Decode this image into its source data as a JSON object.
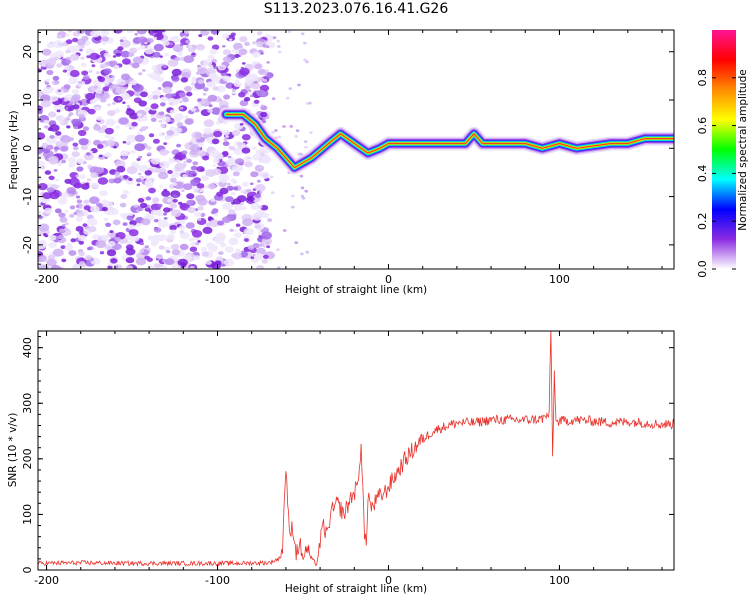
{
  "figure": {
    "title": "S113.2023.076.16.41.G26"
  },
  "colors": {
    "snr_line": "#e8322c",
    "noise_purple": "#8a2be2",
    "frame": "#000000"
  },
  "chart_data": [
    {
      "type": "heatmap",
      "title": "S113.2023.076.16.41.G26",
      "xlabel": "Height of straight line (km)",
      "ylabel": "Frequency (Hz)",
      "xlim": [
        -205,
        167
      ],
      "ylim": [
        -25,
        24.5
      ],
      "x_ticks": [
        -200,
        -100,
        0,
        100
      ],
      "y_ticks": [
        -20,
        -10,
        0,
        10,
        20
      ],
      "noise_region_x": [
        -205,
        -75
      ],
      "signal_ridge": {
        "x": [
          -95,
          -85,
          -78,
          -72,
          -65,
          -55,
          -45,
          -35,
          -28,
          -20,
          -12,
          -5,
          0,
          15,
          30,
          45,
          50,
          55,
          60,
          80,
          90,
          100,
          110,
          130,
          140,
          150,
          167
        ],
        "y": [
          7,
          7,
          5,
          2,
          0,
          -4,
          -2,
          1,
          3,
          1,
          -1,
          0,
          1,
          1,
          1,
          1,
          3,
          1,
          1,
          1,
          0,
          1,
          0,
          1,
          1,
          2,
          2
        ]
      },
      "colorbar": {
        "label": "Normalized spectral amplitude",
        "range": [
          0,
          1
        ],
        "ticks": [
          "0.0",
          "0.2",
          "0.4",
          "0.6",
          "0.8"
        ],
        "tick_values": [
          0,
          0.2,
          0.4,
          0.6,
          0.8
        ],
        "colormap": [
          "#ffffff",
          "#8a2be2",
          "#0000ff",
          "#00ffff",
          "#00ff00",
          "#ffff00",
          "#ff8c00",
          "#ff0000",
          "#ff1493"
        ]
      }
    },
    {
      "type": "line",
      "title": "",
      "xlabel": "Height of straight line (km)",
      "ylabel": "SNR (10 * v/v)",
      "xlim": [
        -205,
        167
      ],
      "ylim": [
        0,
        430
      ],
      "x_ticks": [
        -200,
        -100,
        0,
        100
      ],
      "y_ticks": [
        0,
        100,
        200,
        300,
        400
      ],
      "series": [
        {
          "x": [
            -205,
            -180,
            -150,
            -120,
            -90,
            -70,
            -64,
            -62,
            -60,
            -58,
            -56,
            -54,
            -52,
            -50,
            -48,
            -45,
            -42,
            -40,
            -38,
            -36,
            -34,
            -30,
            -26,
            -22,
            -18,
            -16,
            -14,
            -13,
            -12,
            -10,
            -6,
            -2,
            2,
            6,
            10,
            14,
            18,
            22,
            26,
            30,
            40,
            50,
            60,
            70,
            80,
            90,
            94,
            95,
            96,
            97,
            98,
            100,
            110,
            120,
            130,
            140,
            150,
            160,
            167
          ],
          "y": [
            12,
            13,
            12,
            12,
            12,
            13,
            20,
            40,
            190,
            60,
            80,
            30,
            50,
            20,
            40,
            20,
            10,
            50,
            80,
            60,
            100,
            120,
            100,
            130,
            150,
            230,
            60,
            40,
            140,
            110,
            130,
            140,
            160,
            180,
            200,
            215,
            230,
            240,
            250,
            255,
            265,
            265,
            270,
            270,
            270,
            272,
            280,
            430,
            200,
            355,
            265,
            268,
            270,
            268,
            265,
            267,
            265,
            262,
            263
          ]
        }
      ]
    }
  ]
}
